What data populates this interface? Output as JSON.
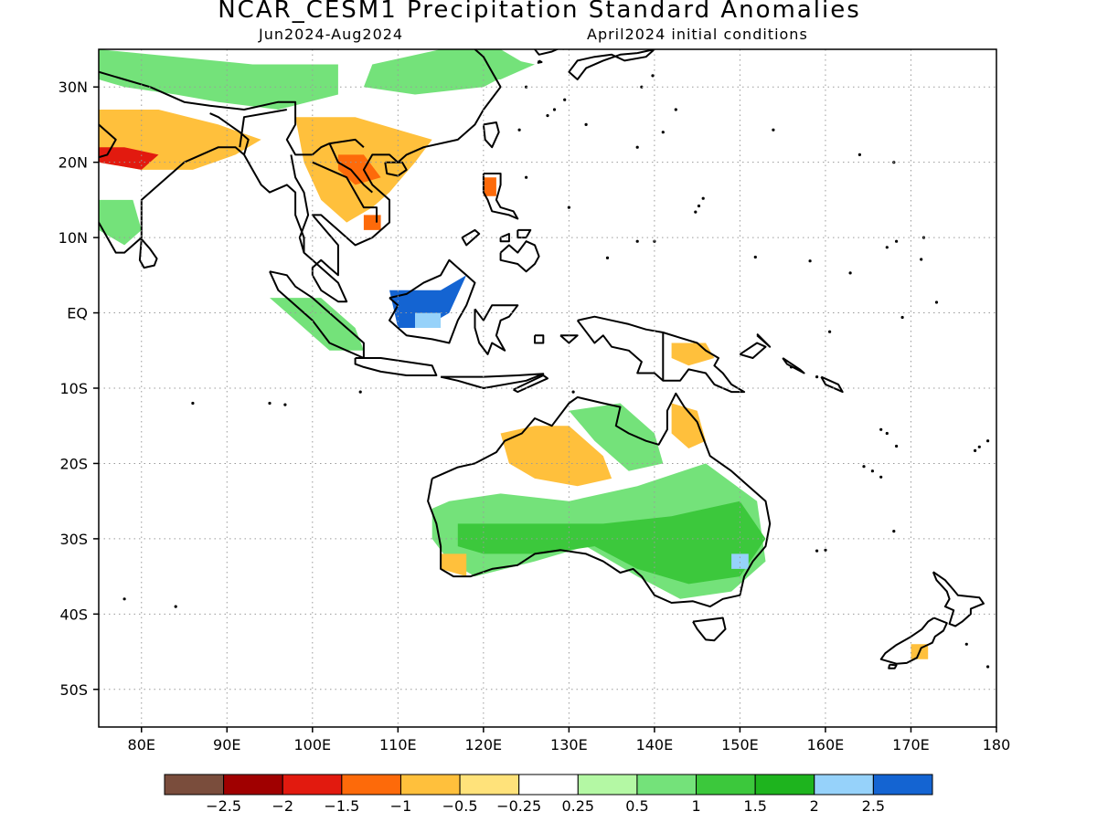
{
  "header": {
    "title": "NCAR_CESM1 Precipitation Standard Anomalies",
    "period": "Jun2024-Aug2024",
    "init": "April2024 initial conditions"
  },
  "map": {
    "lon_range": [
      75,
      180
    ],
    "lat_range": [
      -55,
      35
    ],
    "grid": "dotted",
    "y_ticks": [
      {
        "lat": 30,
        "label": "30N"
      },
      {
        "lat": 20,
        "label": "20N"
      },
      {
        "lat": 10,
        "label": "10N"
      },
      {
        "lat": 0,
        "label": "EQ"
      },
      {
        "lat": -10,
        "label": "10S"
      },
      {
        "lat": -20,
        "label": "20S"
      },
      {
        "lat": -30,
        "label": "30S"
      },
      {
        "lat": -40,
        "label": "40S"
      },
      {
        "lat": -50,
        "label": "50S"
      }
    ],
    "x_ticks": [
      {
        "lon": 80,
        "label": "80E"
      },
      {
        "lon": 90,
        "label": "90E"
      },
      {
        "lon": 100,
        "label": "100E"
      },
      {
        "lon": 110,
        "label": "110E"
      },
      {
        "lon": 120,
        "label": "120E"
      },
      {
        "lon": 130,
        "label": "130E"
      },
      {
        "lon": 140,
        "label": "140E"
      },
      {
        "lon": 150,
        "label": "150E"
      },
      {
        "lon": 160,
        "label": "160E"
      },
      {
        "lon": 170,
        "label": "170E"
      },
      {
        "lon": 180,
        "label": "180"
      }
    ],
    "anomaly_regions": [
      {
        "name": "Himalaya-Tibet wet",
        "color": "#74e27a",
        "pts": [
          [
            75,
            35
          ],
          [
            84,
            34
          ],
          [
            93,
            33
          ],
          [
            103,
            33
          ],
          [
            103,
            29
          ],
          [
            96,
            27
          ],
          [
            89,
            28
          ],
          [
            84,
            29
          ],
          [
            78,
            30
          ],
          [
            75,
            31
          ]
        ]
      },
      {
        "name": "North China wet",
        "color": "#74e27a",
        "pts": [
          [
            107,
            33
          ],
          [
            115,
            35
          ],
          [
            122,
            35
          ],
          [
            125,
            33
          ],
          [
            120,
            30
          ],
          [
            112,
            29
          ],
          [
            106,
            30
          ]
        ]
      },
      {
        "name": "NE China wet",
        "color": "#74e27a",
        "pts": [
          [
            116,
            33
          ],
          [
            122,
            34
          ],
          [
            126,
            33
          ],
          [
            122,
            31
          ],
          [
            117,
            31
          ]
        ]
      },
      {
        "name": "Central India dry",
        "color": "#ffc03c",
        "pts": [
          [
            75,
            27
          ],
          [
            82,
            27
          ],
          [
            89,
            25
          ],
          [
            94,
            23
          ],
          [
            91,
            21
          ],
          [
            86,
            19
          ],
          [
            80,
            19
          ],
          [
            75,
            20
          ]
        ]
      },
      {
        "name": "NW India strong dry",
        "color": "#e21a0f",
        "pts": [
          [
            75,
            22
          ],
          [
            78,
            22
          ],
          [
            82,
            21
          ],
          [
            80,
            19
          ],
          [
            75,
            20
          ]
        ]
      },
      {
        "name": "South China dry",
        "color": "#ffc03c",
        "pts": [
          [
            98,
            26
          ],
          [
            105,
            26
          ],
          [
            111,
            24
          ],
          [
            114,
            23
          ],
          [
            112,
            20
          ],
          [
            109,
            16
          ],
          [
            107,
            14
          ],
          [
            104,
            12
          ],
          [
            101,
            15
          ],
          [
            99,
            20
          ]
        ]
      },
      {
        "name": "Indochina strong dry",
        "color": "#fd6a0a",
        "pts": [
          [
            103,
            21
          ],
          [
            106,
            21
          ],
          [
            108,
            18
          ],
          [
            105,
            17
          ],
          [
            103,
            19
          ]
        ]
      },
      {
        "name": "Cambodia strong dry",
        "color": "#fd6a0a",
        "pts": [
          [
            106,
            13
          ],
          [
            108,
            13
          ],
          [
            108,
            11
          ],
          [
            106,
            11
          ]
        ]
      },
      {
        "name": "S India wet",
        "color": "#74e27a",
        "pts": [
          [
            75,
            15
          ],
          [
            79,
            15
          ],
          [
            80,
            11
          ],
          [
            78,
            9
          ],
          [
            75,
            11
          ]
        ]
      },
      {
        "name": "Philippines dry",
        "color": "#fd6a0a",
        "pts": [
          [
            120,
            18
          ],
          [
            121.5,
            18
          ],
          [
            121.5,
            15.5
          ],
          [
            120,
            15.5
          ]
        ]
      },
      {
        "name": "Sumatra wet",
        "color": "#74e27a",
        "pts": [
          [
            95,
            2
          ],
          [
            101,
            2
          ],
          [
            105,
            -2
          ],
          [
            106,
            -5
          ],
          [
            102,
            -5
          ],
          [
            98,
            -1
          ]
        ]
      },
      {
        "name": "Borneo very wet",
        "color": "#1464d2",
        "pts": [
          [
            109,
            3
          ],
          [
            115,
            3
          ],
          [
            118,
            5
          ],
          [
            116,
            0
          ],
          [
            113,
            -2
          ],
          [
            110,
            -2
          ]
        ]
      },
      {
        "name": "Borneo wet core",
        "color": "#96d2fa",
        "pts": [
          [
            112,
            0
          ],
          [
            115,
            0
          ],
          [
            115,
            -2
          ],
          [
            112,
            -2
          ]
        ]
      },
      {
        "name": "PNG dry",
        "color": "#ffc03c",
        "pts": [
          [
            142,
            -4
          ],
          [
            146,
            -4
          ],
          [
            147,
            -6
          ],
          [
            144,
            -7
          ],
          [
            142,
            -6
          ]
        ]
      },
      {
        "name": "NW Australia dry",
        "color": "#ffc03c",
        "pts": [
          [
            122,
            -16
          ],
          [
            126,
            -15
          ],
          [
            130,
            -15
          ],
          [
            134,
            -19
          ],
          [
            135,
            -22
          ],
          [
            131,
            -23
          ],
          [
            126,
            -22
          ],
          [
            123,
            -20
          ]
        ]
      },
      {
        "name": "Cape York dry",
        "color": "#ffc03c",
        "pts": [
          [
            142,
            -12
          ],
          [
            145,
            -13
          ],
          [
            146,
            -17
          ],
          [
            144,
            -18
          ],
          [
            142,
            -16
          ]
        ]
      },
      {
        "name": "N Territory wet",
        "color": "#74e27a",
        "pts": [
          [
            130,
            -13
          ],
          [
            136,
            -12
          ],
          [
            140,
            -16
          ],
          [
            141,
            -20
          ],
          [
            137,
            -21
          ],
          [
            133,
            -17
          ]
        ]
      },
      {
        "name": "SE Australia wet",
        "color": "#74e27a",
        "pts": [
          [
            116,
            -25
          ],
          [
            122,
            -24
          ],
          [
            130,
            -25
          ],
          [
            138,
            -23
          ],
          [
            146,
            -20
          ],
          [
            152,
            -25
          ],
          [
            153,
            -33
          ],
          [
            149,
            -37
          ],
          [
            143,
            -38
          ],
          [
            138,
            -35
          ],
          [
            132,
            -31
          ],
          [
            126,
            -33
          ],
          [
            119,
            -35
          ],
          [
            116,
            -33
          ],
          [
            114,
            -30
          ],
          [
            114,
            -26
          ]
        ]
      },
      {
        "name": "SE Australia strong wet",
        "color": "#3cc83c",
        "pts": [
          [
            117,
            -28
          ],
          [
            125,
            -28
          ],
          [
            134,
            -28
          ],
          [
            142,
            -27
          ],
          [
            150,
            -25
          ],
          [
            153,
            -30
          ],
          [
            150,
            -35
          ],
          [
            144,
            -36
          ],
          [
            138,
            -34
          ],
          [
            133,
            -31
          ],
          [
            127,
            -32
          ],
          [
            120,
            -32
          ],
          [
            117,
            -31
          ]
        ]
      },
      {
        "name": "SW Australia dry",
        "color": "#ffc03c",
        "pts": [
          [
            115,
            -32
          ],
          [
            118,
            -32
          ],
          [
            118,
            -35
          ],
          [
            115,
            -34
          ]
        ]
      },
      {
        "name": "NSW very wet",
        "color": "#96d2fa",
        "pts": [
          [
            149,
            -32
          ],
          [
            151,
            -32
          ],
          [
            151,
            -34
          ],
          [
            149,
            -34
          ]
        ]
      },
      {
        "name": "New Zealand dry",
        "color": "#ffc03c",
        "pts": [
          [
            170,
            -44
          ],
          [
            172,
            -44
          ],
          [
            172,
            -46
          ],
          [
            170,
            -46
          ]
        ]
      }
    ]
  },
  "colorbar": {
    "colors": [
      "#7a4d3c",
      "#a00000",
      "#e21a0f",
      "#fd6a0a",
      "#ffc03c",
      "#ffe27a",
      "#ffffff",
      "#b4f8a4",
      "#74e27a",
      "#3cc83c",
      "#1eb41e",
      "#96d2fa",
      "#1464d2"
    ],
    "labels": [
      "−2.5",
      "−2",
      "−1.5",
      "−1",
      "−0.5",
      "−0.25",
      "0.25",
      "0.5",
      "1",
      "1.5",
      "2",
      "2.5"
    ]
  }
}
